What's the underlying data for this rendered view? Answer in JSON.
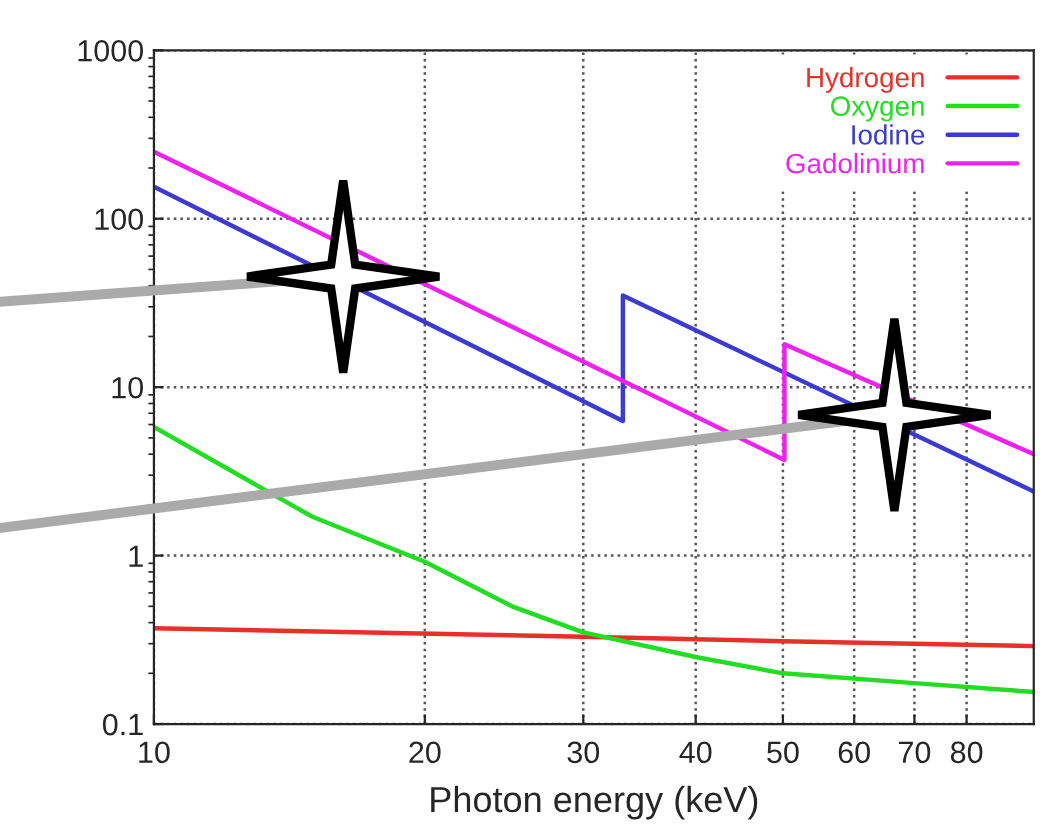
{
  "chart_data": {
    "type": "line",
    "xlabel": "Photon energy (keV)",
    "log": "xy",
    "xlim": [
      10,
      95
    ],
    "ylim": [
      0.1,
      1000
    ],
    "xticks": [
      10,
      20,
      30,
      40,
      50,
      60,
      70,
      80
    ],
    "yticks": [
      0.1,
      1,
      10,
      100,
      1000
    ],
    "grid": true,
    "legend": "top right",
    "series": [
      {
        "name": "Hydrogen",
        "color": "#e8302a",
        "x": [
          10,
          30,
          50,
          95
        ],
        "values": [
          0.37,
          0.33,
          0.31,
          0.29
        ]
      },
      {
        "name": "Oxygen",
        "color": "#22dd22",
        "x": [
          10,
          15,
          20,
          25,
          30,
          40,
          50,
          70,
          95
        ],
        "values": [
          5.8,
          1.7,
          0.92,
          0.5,
          0.35,
          0.25,
          0.2,
          0.175,
          0.155
        ]
      },
      {
        "name": "Iodine",
        "color": "#3b3bd0",
        "x": [
          10,
          33.2,
          33.2,
          95
        ],
        "values": [
          155,
          6.3,
          35,
          2.4
        ]
      },
      {
        "name": "Gadolinium",
        "color": "#ee22ee",
        "x": [
          10,
          50.2,
          50.2,
          95
        ],
        "values": [
          250,
          3.7,
          18,
          4.0
        ]
      }
    ]
  }
}
